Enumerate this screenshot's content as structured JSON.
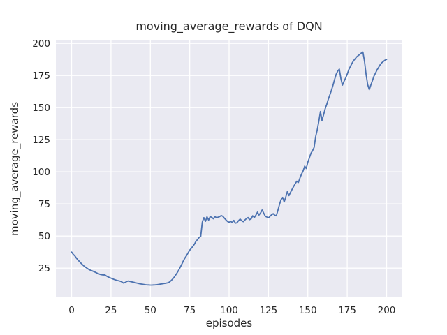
{
  "chart_data": {
    "type": "line",
    "title": "moving_average_rewards of DQN",
    "xlabel": "episodes",
    "ylabel": "moving_average_rewards",
    "xlim": [
      -10,
      210
    ],
    "ylim": [
      2.3,
      202.3
    ],
    "xticks": [
      0,
      25,
      50,
      75,
      100,
      125,
      150,
      175,
      200
    ],
    "yticks": [
      25,
      50,
      75,
      100,
      125,
      150,
      175,
      200
    ],
    "grid": true,
    "legend": "none",
    "x_start": 0,
    "x_step": 1,
    "series": [
      {
        "name": "moving_average_rewards",
        "color": "#4C72B0",
        "values": [
          37.5,
          35.8,
          34.6,
          32.9,
          31.4,
          30.1,
          28.8,
          27.6,
          26.5,
          25.6,
          24.8,
          24.0,
          23.4,
          22.9,
          22.4,
          21.8,
          21.2,
          20.7,
          20.2,
          19.9,
          19.7,
          19.8,
          19.0,
          18.3,
          17.7,
          17.2,
          16.7,
          16.2,
          15.8,
          15.4,
          15.1,
          14.8,
          14.2,
          13.4,
          13.9,
          14.7,
          15.0,
          14.7,
          14.4,
          14.1,
          13.8,
          13.5,
          13.2,
          12.9,
          12.7,
          12.5,
          12.3,
          12.1,
          12.0,
          11.9,
          11.8,
          11.8,
          11.9,
          12.0,
          12.1,
          12.3,
          12.5,
          12.7,
          12.9,
          13.1,
          13.3,
          13.6,
          14.1,
          15.1,
          16.3,
          17.8,
          19.5,
          21.4,
          23.5,
          25.8,
          28.2,
          30.7,
          33.0,
          34.8,
          37.0,
          39.0,
          40.5,
          42.0,
          43.7,
          46.0,
          47.3,
          49.0,
          49.8,
          61.0,
          64.3,
          61.5,
          65.0,
          62.4,
          65.1,
          64.6,
          63.5,
          65.1,
          64.3,
          64.7,
          65.1,
          66.0,
          65.4,
          64.0,
          62.6,
          61.4,
          60.8,
          61.4,
          60.6,
          62.2,
          60.0,
          60.4,
          62.0,
          63.2,
          62.0,
          61.2,
          62.4,
          63.6,
          64.4,
          62.8,
          63.4,
          65.8,
          64.4,
          66.2,
          68.6,
          66.4,
          68.0,
          70.3,
          67.8,
          65.4,
          64.8,
          64.2,
          65.4,
          66.6,
          67.4,
          66.2,
          65.8,
          70.0,
          74.5,
          78.4,
          80.1,
          76.6,
          80.5,
          84.6,
          81.5,
          84.0,
          86.4,
          88.6,
          90.7,
          92.7,
          91.7,
          95.3,
          98.2,
          100.8,
          104.4,
          102.6,
          107.5,
          111.0,
          114.5,
          116.5,
          119.0,
          127.5,
          133.0,
          139.5,
          147.0,
          140.0,
          144.5,
          149.0,
          152.5,
          156.5,
          160.0,
          163.5,
          167.5,
          172.0,
          176.0,
          178.5,
          180.0,
          172.5,
          167.5,
          170.5,
          173.0,
          176.0,
          179.5,
          182.0,
          184.5,
          186.5,
          188.0,
          189.5,
          190.5,
          191.5,
          192.5,
          193.3,
          186.0,
          176.0,
          168.0,
          164.0,
          167.5,
          171.0,
          174.5,
          177.0,
          179.5,
          181.5,
          183.5,
          185.0,
          186.0,
          187.0,
          187.5
        ]
      }
    ],
    "colors": {
      "line": "#4C72B0",
      "plot_background": "#EAEAF2",
      "figure_background": "#FFFFFF",
      "gridline": "#FFFFFF",
      "text": "#262626"
    }
  }
}
